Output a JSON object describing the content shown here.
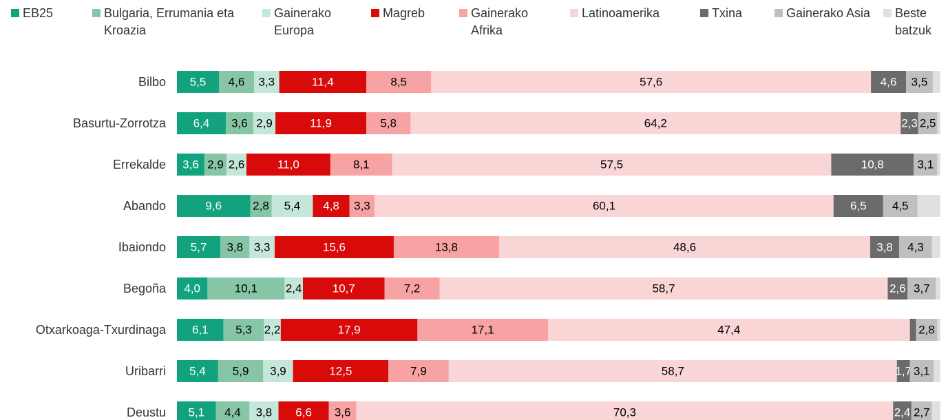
{
  "chart_data": {
    "type": "stacked_bar_horizontal",
    "xlim": [
      0,
      100
    ],
    "categories": [
      "Bilbo",
      "Basurtu-Zorrotza",
      "Errekalde",
      "Abando",
      "Ibaiondo",
      "Begoña",
      "Otxarkoaga-Txurdinaga",
      "Uribarri",
      "Deustu"
    ],
    "series": [
      {
        "name": "EB25",
        "color": "#12a37e",
        "label_color": "#ffffff",
        "values": [
          5.5,
          6.4,
          3.6,
          9.6,
          5.7,
          4.0,
          6.1,
          5.4,
          5.1
        ],
        "value_labels": [
          "5,5",
          "6,4",
          "3,6",
          "9,6",
          "5,7",
          "4,0",
          "6,1",
          "5,4",
          "5,1"
        ]
      },
      {
        "name": "Bulgaria, Errumania eta Kroazia",
        "color": "#86c5a5",
        "label_color": "#000000",
        "values": [
          4.6,
          3.6,
          2.9,
          2.8,
          3.8,
          10.1,
          5.3,
          5.9,
          4.4
        ],
        "value_labels": [
          "4,6",
          "3,6",
          "2,9",
          "2,8",
          "3,8",
          "10,1",
          "5,3",
          "5,9",
          "4,4"
        ]
      },
      {
        "name": "Gainerako Europa",
        "color": "#c5e7d9",
        "label_color": "#000000",
        "values": [
          3.3,
          2.9,
          2.6,
          5.4,
          3.3,
          2.4,
          2.2,
          3.9,
          3.8
        ],
        "value_labels": [
          "3,3",
          "2,9",
          "2,6",
          "5,4",
          "3,3",
          "2,4",
          "2,2",
          "3,9",
          "3,8"
        ]
      },
      {
        "name": "Magreb",
        "color": "#d90a0a",
        "label_color": "#ffffff",
        "values": [
          11.4,
          11.9,
          11.0,
          4.8,
          15.6,
          10.7,
          17.9,
          12.5,
          6.6
        ],
        "value_labels": [
          "11,4",
          "11,9",
          "11,0",
          "4,8",
          "15,6",
          "10,7",
          "17,9",
          "12,5",
          "6,6"
        ]
      },
      {
        "name": "Gainerako Afrika",
        "color": "#f7a3a3",
        "label_color": "#000000",
        "values": [
          8.5,
          5.8,
          8.1,
          3.3,
          13.8,
          7.2,
          17.1,
          7.9,
          3.6
        ],
        "value_labels": [
          "8,5",
          "5,8",
          "8,1",
          "3,3",
          "13,8",
          "7,2",
          "17,1",
          "7,9",
          "3,6"
        ]
      },
      {
        "name": "Latinoamerika",
        "color": "#fad5d5",
        "label_color": "#000000",
        "values": [
          57.6,
          64.2,
          57.5,
          60.1,
          48.6,
          58.7,
          47.4,
          58.7,
          70.3
        ],
        "value_labels": [
          "57,6",
          "64,2",
          "57,5",
          "60,1",
          "48,6",
          "58,7",
          "47,4",
          "58,7",
          "70,3"
        ]
      },
      {
        "name": "Txina",
        "color": "#6b6b6b",
        "label_color": "#ffffff",
        "values": [
          4.6,
          2.3,
          10.8,
          6.5,
          3.8,
          2.6,
          0.8,
          1.7,
          2.4
        ],
        "value_labels": [
          "4,6",
          "2,3",
          "10,8",
          "6,5",
          "3,8",
          "2,6",
          null,
          "1,7",
          "2,4"
        ]
      },
      {
        "name": "Gainerako Asia",
        "color": "#bfbfbf",
        "label_color": "#000000",
        "values": [
          3.5,
          2.5,
          3.1,
          4.5,
          4.3,
          3.7,
          2.8,
          3.1,
          2.7
        ],
        "value_labels": [
          "3,5",
          "2,5",
          "3,1",
          "4,5",
          "4,3",
          "3,7",
          "2,8",
          "3,1",
          "2,7"
        ]
      },
      {
        "name": "Beste batzuk",
        "color": "#e0e0e0",
        "values": [
          1.0,
          0.4,
          0.4,
          3.0,
          1.1,
          0.6,
          0.4,
          0.9,
          1.1
        ]
      }
    ]
  }
}
